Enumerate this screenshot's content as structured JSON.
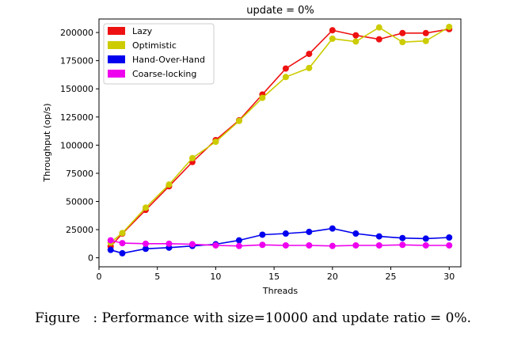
{
  "caption": "Figure   : Performance with size=10000 and update ratio = 0%.",
  "chart_data": {
    "type": "line",
    "title": "update = 0%",
    "xlabel": "Threads",
    "ylabel": "Throughput (op/s)",
    "xlim": [
      0,
      31
    ],
    "ylim": [
      -8000,
      212000
    ],
    "xticks": [
      0,
      5,
      10,
      15,
      20,
      25,
      30
    ],
    "yticks": [
      0,
      25000,
      50000,
      75000,
      100000,
      125000,
      150000,
      175000,
      200000
    ],
    "x": [
      1,
      2,
      4,
      6,
      8,
      10,
      12,
      14,
      16,
      18,
      20,
      22,
      24,
      26,
      28,
      30
    ],
    "legend_position": "upper-left",
    "series": [
      {
        "name": "Lazy",
        "color": "#ee1111",
        "values": [
          10000,
          21500,
          42500,
          63500,
          85000,
          104500,
          122000,
          145000,
          168000,
          181000,
          202000,
          197500,
          194000,
          199500,
          199500,
          203000
        ]
      },
      {
        "name": "Optimistic",
        "color": "#cccc00",
        "values": [
          13500,
          22000,
          44500,
          65000,
          88500,
          103000,
          121500,
          142000,
          160500,
          168500,
          194500,
          192000,
          204500,
          191500,
          192500,
          205000
        ]
      },
      {
        "name": "Hand-Over-Hand",
        "color": "#0000ee",
        "values": [
          7000,
          4000,
          8000,
          9000,
          10500,
          12000,
          15500,
          20500,
          21500,
          23000,
          26000,
          21500,
          19000,
          17500,
          17000,
          18000
        ]
      },
      {
        "name": "Coarse-locking",
        "color": "#ee00ee",
        "values": [
          15500,
          13000,
          12500,
          12500,
          12000,
          11000,
          10500,
          11500,
          11000,
          11000,
          10500,
          11000,
          11000,
          11500,
          11000,
          11000
        ]
      }
    ]
  }
}
